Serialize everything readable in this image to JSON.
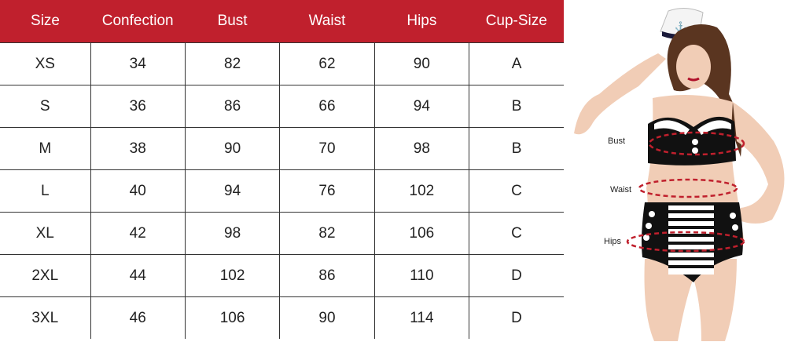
{
  "table": {
    "headers": [
      "Size",
      "Confection",
      "Bust",
      "Waist",
      "Hips",
      "Cup-Size"
    ],
    "rows": [
      [
        "XS",
        "34",
        "82",
        "62",
        "90",
        "A"
      ],
      [
        "S",
        "36",
        "86",
        "66",
        "94",
        "B"
      ],
      [
        "M",
        "38",
        "90",
        "70",
        "98",
        "B"
      ],
      [
        "L",
        "40",
        "94",
        "76",
        "102",
        "C"
      ],
      [
        "XL",
        "42",
        "98",
        "82",
        "106",
        "C"
      ],
      [
        "2XL",
        "44",
        "102",
        "86",
        "110",
        "D"
      ],
      [
        "3XL",
        "46",
        "106",
        "90",
        "114",
        "D"
      ]
    ],
    "header_color": "#c0202d"
  },
  "figure": {
    "labels": {
      "bust": "Bust",
      "waist": "Waist",
      "hips": "Hips"
    },
    "measure_line_color": "#c0202d"
  }
}
